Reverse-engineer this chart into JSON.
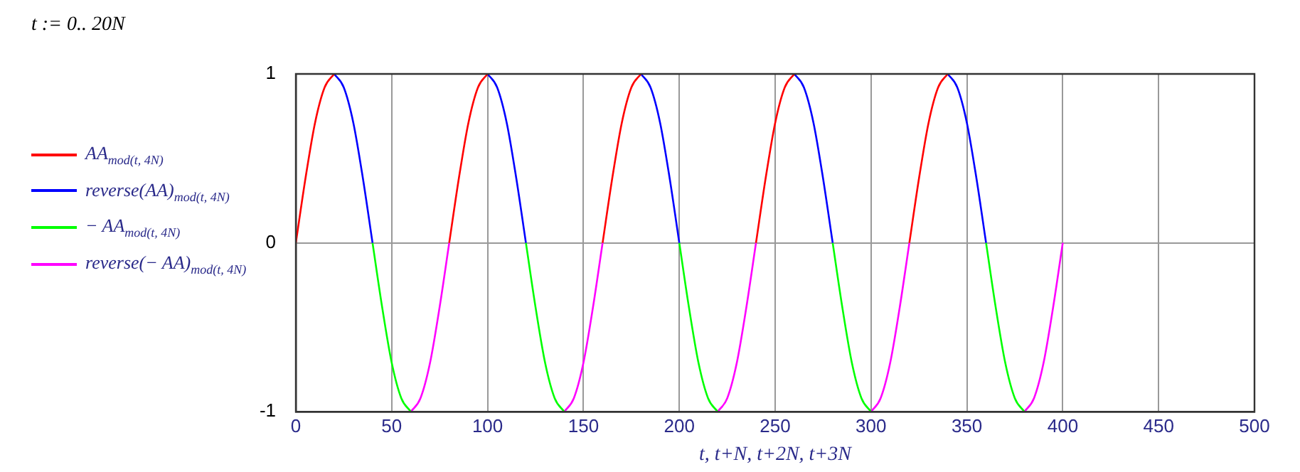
{
  "chart_data": {
    "type": "line",
    "title": "t := 0.. 20N",
    "xlabel": "t, t+N, t+2N, t+3N",
    "xlim": [
      0,
      500
    ],
    "xticks": [
      0,
      50,
      100,
      150,
      200,
      250,
      300,
      350,
      400,
      450,
      500
    ],
    "ylim": [
      -1,
      1
    ],
    "yticks": [
      -1,
      0,
      1
    ],
    "grid": true,
    "legend": "left",
    "marker": "none",
    "line_style": "solid",
    "series": [
      {
        "name": "AA$_{mod(t, 4N)}$",
        "color": "#ff0000",
        "x": [
          0,
          5,
          10,
          15,
          20,
          50,
          80,
          85,
          90,
          95,
          100,
          130,
          160,
          165,
          170,
          175,
          180,
          210,
          240,
          245,
          250,
          255,
          260,
          290,
          320,
          325,
          330,
          335,
          340
        ],
        "values": [
          0,
          0.38,
          0.71,
          0.92,
          1,
          null,
          0,
          0.38,
          0.71,
          0.92,
          1,
          null,
          0,
          0.38,
          0.71,
          0.92,
          1,
          null,
          0,
          0.38,
          0.71,
          0.92,
          1,
          null,
          0,
          0.38,
          0.71,
          0.92,
          1
        ]
      },
      {
        "name": "reverse(AA)$_{mod(t, 4N)}$",
        "color": "#0000ff",
        "x": [
          20,
          25,
          30,
          35,
          40,
          70,
          100,
          105,
          110,
          115,
          120,
          150,
          180,
          185,
          190,
          195,
          200,
          230,
          260,
          265,
          270,
          275,
          280,
          310,
          340,
          345,
          350,
          355,
          360
        ],
        "values": [
          1,
          0.92,
          0.71,
          0.38,
          0,
          null,
          1,
          0.92,
          0.71,
          0.38,
          0,
          null,
          1,
          0.92,
          0.71,
          0.38,
          0,
          null,
          1,
          0.92,
          0.71,
          0.38,
          0,
          null,
          1,
          0.92,
          0.71,
          0.38,
          0
        ]
      },
      {
        "name": "− AA$_{mod(t, 4N)}$",
        "color": "#00ff00",
        "x": [
          40,
          45,
          50,
          55,
          60,
          90,
          120,
          125,
          130,
          135,
          140,
          170,
          200,
          205,
          210,
          215,
          220,
          250,
          280,
          285,
          290,
          295,
          300,
          330,
          360,
          365,
          370,
          375,
          380
        ],
        "values": [
          0,
          -0.38,
          -0.71,
          -0.92,
          -1,
          null,
          0,
          -0.38,
          -0.71,
          -0.92,
          -1,
          null,
          0,
          -0.38,
          -0.71,
          -0.92,
          -1,
          null,
          0,
          -0.38,
          -0.71,
          -0.92,
          -1,
          null,
          0,
          -0.38,
          -0.71,
          -0.92,
          -1
        ]
      },
      {
        "name": "reverse(− AA)$_{mod(t, 4N)}$",
        "color": "#ff00ff",
        "x": [
          60,
          65,
          70,
          75,
          80,
          110,
          140,
          145,
          150,
          155,
          160,
          190,
          220,
          225,
          230,
          235,
          240,
          270,
          300,
          305,
          310,
          315,
          320,
          350,
          380,
          385,
          390,
          395,
          400
        ],
        "values": [
          -1,
          -0.92,
          -0.71,
          -0.38,
          0,
          null,
          -1,
          -0.92,
          -0.71,
          -0.38,
          0,
          null,
          -1,
          -0.92,
          -0.71,
          -0.38,
          0,
          null,
          -1,
          -0.92,
          -0.71,
          -0.38,
          0,
          null,
          -1,
          -0.92,
          -0.71,
          -0.38,
          0
        ]
      }
    ]
  }
}
